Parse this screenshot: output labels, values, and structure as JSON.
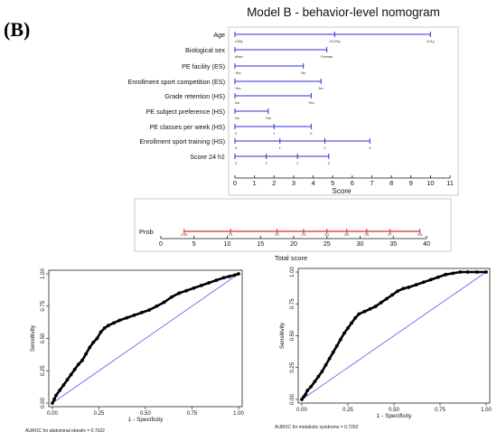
{
  "panel_label": "(B)",
  "chart_data": [
    {
      "type": "nomogram",
      "title": "Model B - behavior-level nomogram",
      "score_axis": {
        "label": "Score",
        "ticks": [
          0,
          1,
          2,
          3,
          4,
          5,
          6,
          7,
          8,
          9,
          10,
          11
        ]
      },
      "variables": [
        {
          "label": "Age",
          "points": [
            0,
            5.1,
            10
          ],
          "levels": [
            "≤18y",
            "19-20y",
            "≥21y"
          ]
        },
        {
          "label": "Biological sex",
          "points": [
            0,
            4.7
          ],
          "levels": [
            "Male",
            "Female"
          ]
        },
        {
          "label": "PE facility (ES)",
          "points": [
            0,
            3.5
          ],
          "levels": [
            "Yes",
            "No"
          ]
        },
        {
          "label": "Enrollment sport competition (ES)",
          "points": [
            0,
            4.4
          ],
          "levels": [
            "Yes",
            "No"
          ]
        },
        {
          "label": "Grade retention (HS)",
          "points": [
            0,
            3.9
          ],
          "levels": [
            "No",
            "Yes"
          ]
        },
        {
          "label": "PE subject preference (HS)",
          "points": [
            0,
            1.7
          ],
          "levels": [
            "No",
            "Yes"
          ]
        },
        {
          "label": "PE classes per week (HS)",
          "points": [
            0,
            2.0,
            3.9
          ],
          "levels": [
            "2",
            "1",
            "0"
          ]
        },
        {
          "label": "Enrollment sport training (HS)",
          "points": [
            0,
            2.3,
            4.6,
            6.9
          ],
          "levels": [
            "0",
            "1",
            "2",
            "3"
          ]
        },
        {
          "label": "Score 24 h‡",
          "points": [
            0,
            1.6,
            3.2,
            4.8
          ],
          "levels": [
            "3",
            "2",
            "1",
            "0"
          ]
        }
      ],
      "total_score": {
        "label": "Total score",
        "ticks": [
          0,
          5,
          10,
          15,
          20,
          25,
          30,
          35,
          40
        ]
      },
      "prob": {
        "label": "Prob",
        "ticks": [
          {
            "label": "0.05",
            "at": 3.5
          },
          {
            "label": "0.1",
            "at": 10.5
          },
          {
            "label": "0.2",
            "at": 17.5
          },
          {
            "label": "0.3",
            "at": 21.5
          },
          {
            "label": "0.4",
            "at": 25
          },
          {
            "label": "0.5",
            "at": 28
          },
          {
            "label": "0.6",
            "at": 31
          },
          {
            "label": "0.7",
            "at": 34.5
          },
          {
            "label": "0.8",
            "at": 39
          }
        ]
      }
    },
    {
      "type": "line",
      "xlabel": "1 - Specificity",
      "ylabel": "Sensitivity",
      "xlim": [
        0,
        1
      ],
      "ylim": [
        0,
        1
      ],
      "xticks": [
        "0.00",
        "0.25",
        "0.50",
        "0.75",
        "1.00"
      ],
      "yticks": [
        "0.00",
        "0.25",
        "0.50",
        "0.75",
        "1.00"
      ],
      "footnote": "AUROC for abdominal obesity = 0.7022",
      "series": [
        {
          "values": [
            [
              0,
              0
            ],
            [
              0.01,
              0.03
            ],
            [
              0.02,
              0.06
            ],
            [
              0.04,
              0.1
            ],
            [
              0.06,
              0.14
            ],
            [
              0.08,
              0.18
            ],
            [
              0.1,
              0.22
            ],
            [
              0.12,
              0.26
            ],
            [
              0.14,
              0.3
            ],
            [
              0.16,
              0.33
            ],
            [
              0.18,
              0.38
            ],
            [
              0.2,
              0.43
            ],
            [
              0.22,
              0.47
            ],
            [
              0.24,
              0.5
            ],
            [
              0.26,
              0.55
            ],
            [
              0.28,
              0.58
            ],
            [
              0.3,
              0.6
            ],
            [
              0.33,
              0.62
            ],
            [
              0.36,
              0.64
            ],
            [
              0.4,
              0.66
            ],
            [
              0.44,
              0.68
            ],
            [
              0.48,
              0.7
            ],
            [
              0.52,
              0.72
            ],
            [
              0.56,
              0.75
            ],
            [
              0.6,
              0.78
            ],
            [
              0.64,
              0.82
            ],
            [
              0.68,
              0.85
            ],
            [
              0.72,
              0.87
            ],
            [
              0.76,
              0.89
            ],
            [
              0.8,
              0.91
            ],
            [
              0.84,
              0.93
            ],
            [
              0.88,
              0.95
            ],
            [
              0.92,
              0.97
            ],
            [
              0.95,
              0.98
            ],
            [
              0.98,
              0.99
            ],
            [
              1,
              1
            ]
          ]
        }
      ]
    },
    {
      "type": "line",
      "xlabel": "1 - Specificity",
      "ylabel": "Sensitivity",
      "xlim": [
        0,
        1
      ],
      "ylim": [
        0,
        1
      ],
      "xticks": [
        "0.00",
        "0.25",
        "0.50",
        "0.75",
        "1.00"
      ],
      "yticks": [
        "0.00",
        "0.25",
        "0.50",
        "0.75",
        "1.00"
      ],
      "footnote": "AUROC for metabolic syndrome = 0.7262",
      "series": [
        {
          "values": [
            [
              0,
              0
            ],
            [
              0.01,
              0.02
            ],
            [
              0.02,
              0.04
            ],
            [
              0.03,
              0.07
            ],
            [
              0.05,
              0.1
            ],
            [
              0.07,
              0.14
            ],
            [
              0.09,
              0.18
            ],
            [
              0.11,
              0.22
            ],
            [
              0.13,
              0.27
            ],
            [
              0.15,
              0.32
            ],
            [
              0.17,
              0.37
            ],
            [
              0.19,
              0.42
            ],
            [
              0.21,
              0.47
            ],
            [
              0.23,
              0.52
            ],
            [
              0.25,
              0.56
            ],
            [
              0.27,
              0.6
            ],
            [
              0.29,
              0.64
            ],
            [
              0.31,
              0.67
            ],
            [
              0.34,
              0.69
            ],
            [
              0.37,
              0.71
            ],
            [
              0.4,
              0.73
            ],
            [
              0.43,
              0.76
            ],
            [
              0.46,
              0.79
            ],
            [
              0.49,
              0.82
            ],
            [
              0.52,
              0.85
            ],
            [
              0.55,
              0.87
            ],
            [
              0.58,
              0.88
            ],
            [
              0.62,
              0.9
            ],
            [
              0.66,
              0.92
            ],
            [
              0.7,
              0.94
            ],
            [
              0.74,
              0.96
            ],
            [
              0.78,
              0.98
            ],
            [
              0.82,
              0.99
            ],
            [
              0.86,
              1
            ],
            [
              0.9,
              1
            ],
            [
              0.95,
              1
            ],
            [
              1,
              1
            ]
          ]
        }
      ]
    }
  ]
}
